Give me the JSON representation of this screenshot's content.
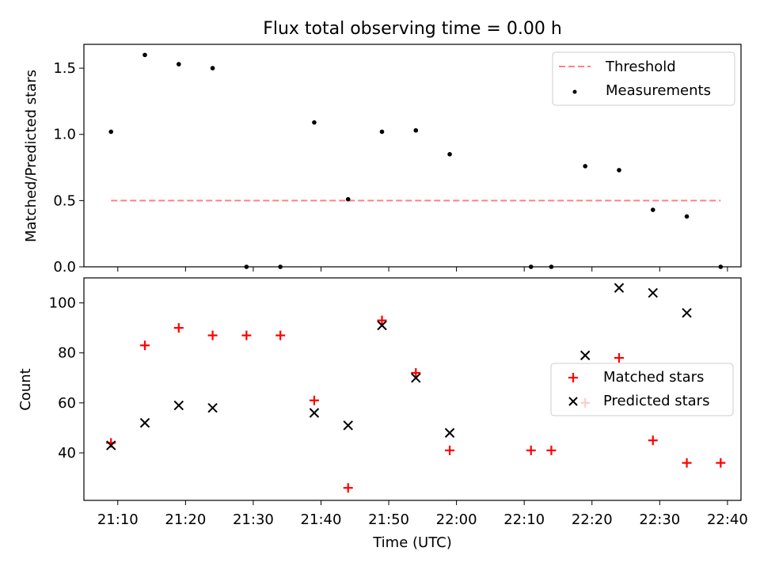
{
  "chart_data": [
    {
      "type": "scatter",
      "title": "Flux total observing time = 0.00 h",
      "xlabel": "",
      "ylabel": "Matched/Predicted stars",
      "ylim": [
        0,
        1.68
      ],
      "yticks": [
        0.0,
        0.5,
        1.0,
        1.5
      ],
      "ytick_labels": [
        "0.0",
        "0.5",
        "1.0",
        "1.5"
      ],
      "legend_position": "upper right",
      "threshold": {
        "name": "Threshold",
        "color": "#ff8080",
        "style": "dashed",
        "y": 0.5,
        "x_from": "21:09",
        "x_to": "22:39"
      },
      "series": [
        {
          "name": "Measurements",
          "marker": "dot",
          "color": "#000000",
          "x": [
            "21:09",
            "21:14",
            "21:19",
            "21:24",
            "21:29",
            "21:34",
            "21:39",
            "21:44",
            "21:49",
            "21:54",
            "21:59",
            "22:11",
            "22:14",
            "22:19",
            "22:24",
            "22:29",
            "22:34",
            "22:39"
          ],
          "y": [
            1.02,
            1.6,
            1.53,
            1.5,
            0.0,
            0.0,
            1.09,
            0.51,
            1.02,
            1.03,
            0.85,
            0.0,
            0.0,
            0.76,
            0.73,
            0.43,
            0.38,
            0.0
          ]
        }
      ]
    },
    {
      "type": "scatter",
      "title": "",
      "xlabel": "Time (UTC)",
      "ylabel": "Count",
      "ylim": [
        21,
        110
      ],
      "yticks": [
        40,
        60,
        80,
        100
      ],
      "ytick_labels": [
        "40",
        "60",
        "80",
        "100"
      ],
      "xticks": [
        "21:10",
        "21:20",
        "21:30",
        "21:40",
        "21:50",
        "22:00",
        "22:10",
        "22:20",
        "22:30",
        "22:40"
      ],
      "xlim": [
        "21:05",
        "22:42"
      ],
      "legend_position": "center right",
      "series": [
        {
          "name": "Matched stars",
          "marker": "plus",
          "color": "#ff0000",
          "x": [
            "21:09",
            "21:14",
            "21:19",
            "21:24",
            "21:29",
            "21:34",
            "21:39",
            "21:44",
            "21:49",
            "21:54",
            "21:59",
            "22:11",
            "22:14",
            "22:19",
            "22:24",
            "22:29",
            "22:34",
            "22:39"
          ],
          "y": [
            44,
            83,
            90,
            87,
            87,
            87,
            61,
            26,
            93,
            72,
            41,
            41,
            41,
            60,
            78,
            45,
            36,
            36
          ]
        },
        {
          "name": "Predicted stars",
          "marker": "x",
          "color": "#000000",
          "x": [
            "21:09",
            "21:14",
            "21:19",
            "21:24",
            "21:39",
            "21:44",
            "21:49",
            "21:54",
            "21:59",
            "22:19",
            "22:24",
            "22:29",
            "22:34"
          ],
          "y": [
            43,
            52,
            59,
            58,
            56,
            51,
            91,
            70,
            48,
            79,
            106,
            104,
            96
          ]
        }
      ]
    }
  ]
}
